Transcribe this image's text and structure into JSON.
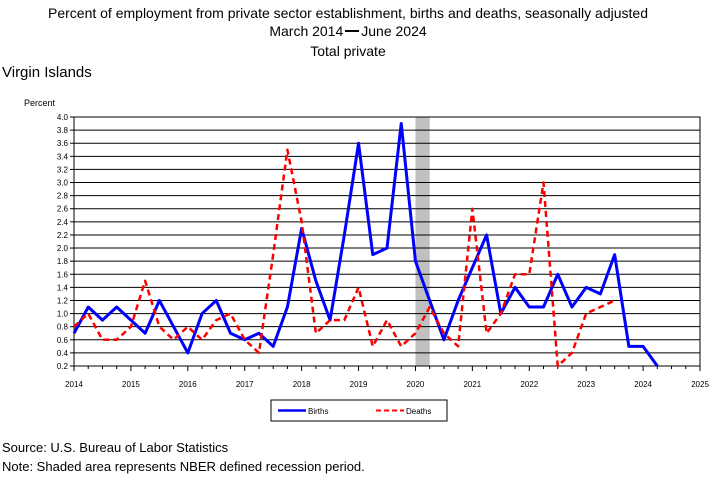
{
  "header": {
    "title_line1": "Percent of employment from private sector establishment, births and deaths, seasonally adjusted",
    "date_start": "March 2014",
    "date_end": "June 2024",
    "title_line3": "Total private",
    "region": "Virgin Islands",
    "unit_label": "Percent"
  },
  "footer": {
    "source": "Source: U.S. Bureau of Labor Statistics",
    "note": "Note: Shaded area represents NBER defined recession period."
  },
  "chart_data": {
    "type": "line",
    "ylabel": "Percent",
    "xlim": [
      2014,
      2025
    ],
    "ylim": [
      0.2,
      4.0
    ],
    "grid": "horizontal",
    "legend_position": "bottom-center",
    "x_ticks": [
      "2014",
      "2015",
      "2016",
      "2017",
      "2018",
      "2019",
      "2020",
      "2021",
      "2022",
      "2023",
      "2024",
      "2025"
    ],
    "y_ticks": [
      "0.2",
      "0.4",
      "0.6",
      "0.8",
      "1.0",
      "1.2",
      "1.4",
      "1.6",
      "1.8",
      "2.0",
      "2.2",
      "2.4",
      "2.6",
      "2.8",
      "3.0",
      "3.2",
      "3.4",
      "3.6",
      "3.8",
      "4.0"
    ],
    "recession": {
      "start": 2020.0,
      "end": 2020.25,
      "color": "#c0c0c0"
    },
    "x": [
      "2014 Q1",
      "2014 Q2",
      "2014 Q3",
      "2014 Q4",
      "2015 Q1",
      "2015 Q2",
      "2015 Q3",
      "2015 Q4",
      "2016 Q1",
      "2016 Q2",
      "2016 Q3",
      "2016 Q4",
      "2017 Q1",
      "2017 Q2",
      "2017 Q3",
      "2017 Q4",
      "2018 Q1",
      "2018 Q2",
      "2018 Q3",
      "2018 Q4",
      "2019 Q1",
      "2019 Q2",
      "2019 Q3",
      "2019 Q4",
      "2020 Q1",
      "2020 Q2",
      "2020 Q3",
      "2020 Q4",
      "2021 Q1",
      "2021 Q2",
      "2021 Q3",
      "2021 Q4",
      "2022 Q1",
      "2022 Q2",
      "2022 Q3",
      "2022 Q4",
      "2023 Q1",
      "2023 Q2",
      "2023 Q3",
      "2023 Q4",
      "2024 Q1",
      "2024 Q2"
    ],
    "series": [
      {
        "name": "Births",
        "color": "#0000ff",
        "style": "solid",
        "values": [
          0.7,
          1.1,
          0.9,
          1.1,
          0.9,
          0.7,
          1.2,
          0.8,
          0.4,
          1.0,
          1.2,
          0.7,
          0.6,
          0.7,
          0.5,
          1.1,
          2.3,
          1.5,
          0.9,
          2.2,
          3.6,
          1.9,
          2.0,
          3.9,
          1.8,
          1.2,
          0.6,
          1.2,
          1.7,
          2.2,
          1.0,
          1.4,
          1.1,
          1.1,
          1.6,
          1.1,
          1.4,
          1.3,
          1.9,
          0.5,
          0.5,
          0.2
        ]
      },
      {
        "name": "Deaths",
        "color": "#ff0000",
        "style": "dashed",
        "values": [
          0.8,
          1.0,
          0.6,
          0.6,
          0.8,
          1.5,
          0.8,
          0.6,
          0.8,
          0.6,
          0.9,
          1.0,
          0.6,
          0.4,
          1.9,
          3.5,
          2.4,
          0.7,
          0.9,
          0.9,
          1.4,
          0.5,
          0.9,
          0.5,
          0.7,
          1.1,
          0.7,
          0.5,
          2.6,
          0.7,
          1.0,
          1.6,
          1.6,
          3.0,
          0.2,
          0.4,
          1.0,
          1.1,
          1.2,
          null,
          null,
          null
        ]
      }
    ]
  }
}
